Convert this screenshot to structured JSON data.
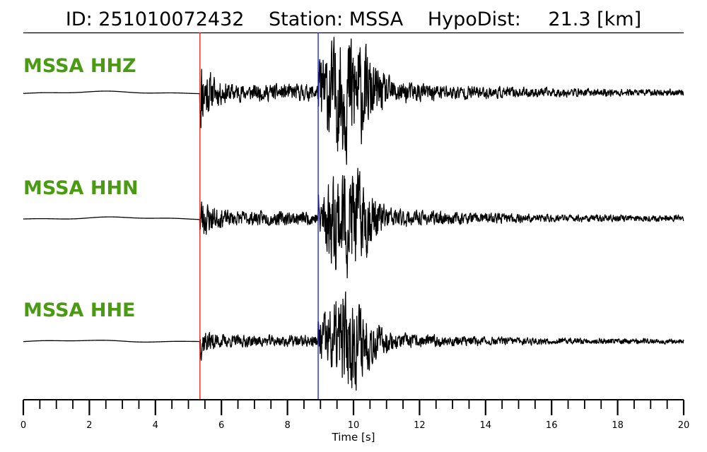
{
  "header": {
    "id_text": "ID: 251010072432",
    "station_text": "Station: MSSA",
    "dist_label": "HypoDist:",
    "dist_value": "21.3 [km]"
  },
  "chart_data": {
    "type": "line",
    "title": "ID: 251010072432   Station: MSSA   HypoDist:    21.3 [km]",
    "xlabel": "Time [s]",
    "xlim": [
      0,
      20
    ],
    "x_ticks": [
      0,
      2,
      4,
      6,
      8,
      10,
      12,
      14,
      16,
      18,
      20
    ],
    "x_minor_step": 0.5,
    "grid": false,
    "picks": [
      {
        "phase": "P",
        "time": 5.35,
        "color": "#e8231f"
      },
      {
        "phase": "S",
        "time": 8.93,
        "color": "#1f2bd6"
      }
    ],
    "label_color": "#4a9a12",
    "trace_color": "#000000",
    "series": [
      {
        "name": "MSSA HHZ",
        "channel": "HHZ",
        "noise_amp": 0.12,
        "p_amp": 0.75,
        "s_amp": 1.0,
        "coda_amp": 0.4,
        "seed": 11
      },
      {
        "name": "MSSA HHN",
        "channel": "HHN",
        "noise_amp": 0.1,
        "p_amp": 0.45,
        "s_amp": 0.95,
        "coda_amp": 0.3,
        "seed": 23
      },
      {
        "name": "MSSA HHE",
        "channel": "HHE",
        "noise_amp": 0.1,
        "p_amp": 0.35,
        "s_amp": 1.0,
        "coda_amp": 0.32,
        "seed": 37
      }
    ]
  }
}
